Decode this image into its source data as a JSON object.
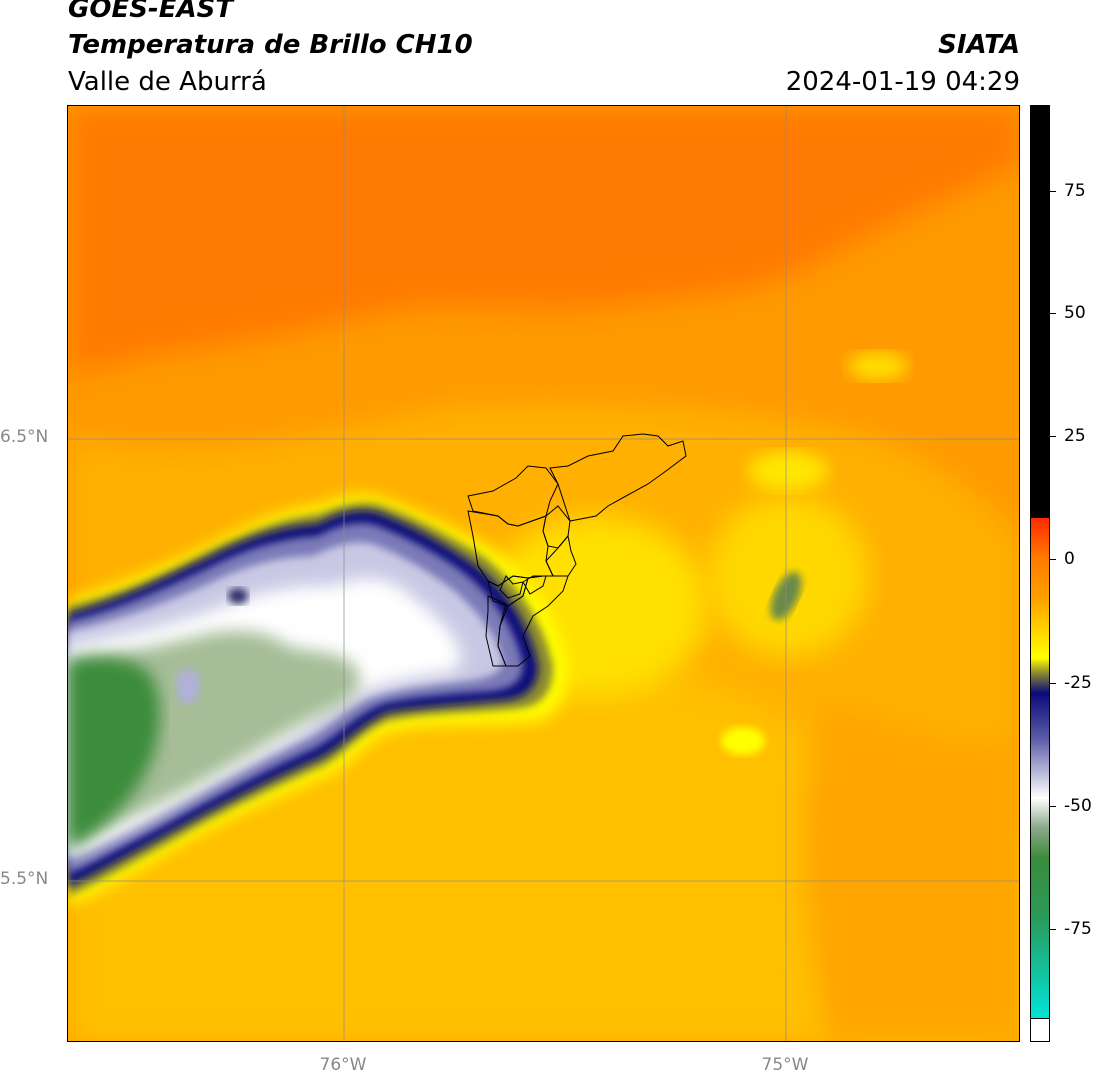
{
  "header": {
    "satellite": "GOES-EAST",
    "product": "Temperatura de Brillo CH10",
    "region": "Valle de Aburrá",
    "brand": "SIATA",
    "datetime": "2024-01-19 04:29"
  },
  "map": {
    "lat_labels": [
      "6.5°N",
      "5.5°N"
    ],
    "lon_labels": [
      "76°W",
      "75°W"
    ]
  },
  "colorbar": {
    "ticks": [
      "75",
      "50",
      "25",
      "0",
      "-25",
      "-50",
      "-75"
    ],
    "colors": {
      "black": "#000000",
      "red": "#ff2a00",
      "orange": "#ff8000",
      "yellow": "#ffff00",
      "navy": "#0a0a7a",
      "white": "#ffffff",
      "green": "#3a8c3a",
      "cyan": "#00e5d8"
    }
  }
}
